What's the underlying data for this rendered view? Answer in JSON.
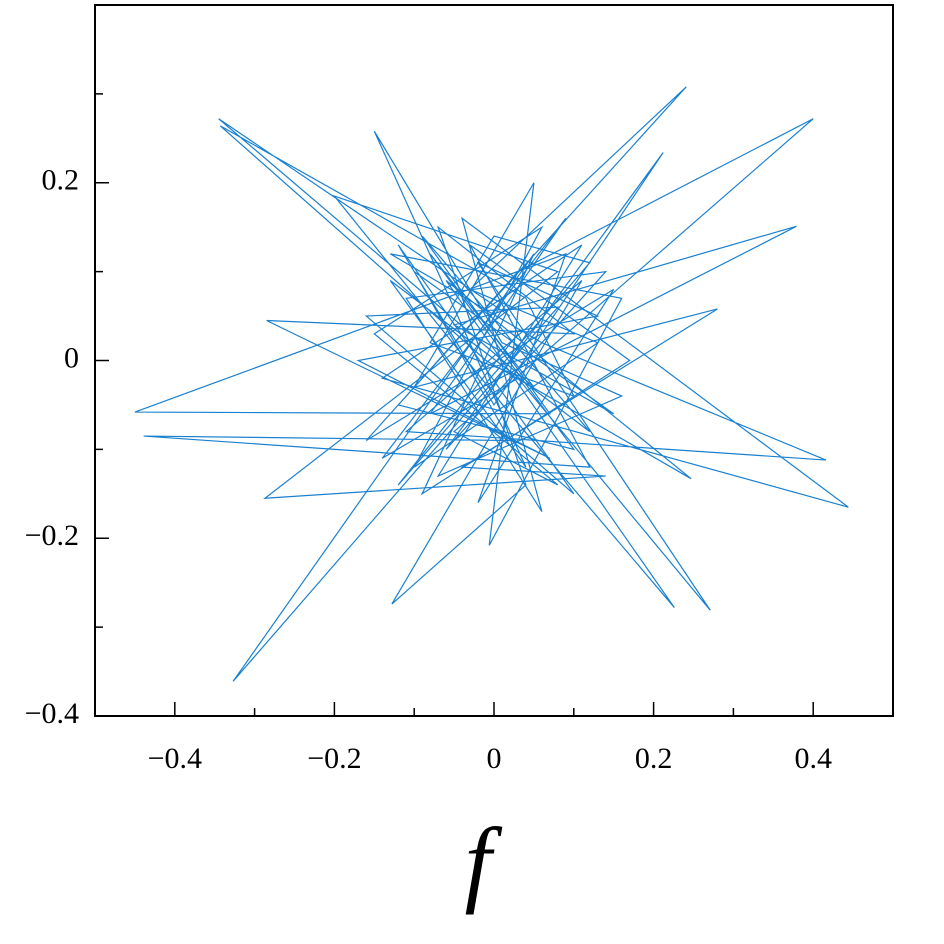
{
  "chart_data": {
    "type": "line",
    "xlabel": "f",
    "xlim": [
      -0.5,
      0.5
    ],
    "ylim": [
      -0.4,
      0.4
    ],
    "xticks": [
      {
        "value": -0.4,
        "label": "−0.4"
      },
      {
        "value": -0.2,
        "label": "−0.2"
      },
      0,
      0.2,
      0.4
    ],
    "yticks": [
      {
        "value": -0.4,
        "label": "−0.4"
      },
      {
        "value": -0.2,
        "label": "−0.2"
      },
      0,
      0.2
    ],
    "xminorticks": [
      -0.3,
      -0.1,
      0.1,
      0.3
    ],
    "yminorticks": [
      -0.3,
      -0.1,
      0.1,
      0.3
    ],
    "x": [
      0.02,
      -0.345,
      0.05,
      -0.08,
      0.1,
      -0.12,
      0.241,
      -0.03,
      0.13,
      -0.1,
      0.06,
      -0.15,
      0.08,
      -0.05,
      0.4,
      0.03,
      -0.16,
      0.15,
      -0.02,
      0.09,
      -0.45,
      0.07,
      -0.09,
      0.12,
      -0.13,
      0.04,
      -0.15,
      0.01,
      0.16,
      -0.07,
      0.11,
      -0.14,
      0.444,
      -0.04,
      0.06,
      -0.11,
      0.14,
      -0.06,
      0.212,
      0.0,
      -0.12,
      0.1,
      -0.16,
      0.08,
      -0.327,
      0.05,
      -0.09,
      0.17,
      -0.03,
      0.12,
      -0.439,
      0.02,
      -0.1,
      0.15,
      -0.05,
      0.379,
      -0.08,
      0.09,
      -0.14,
      0.03,
      0.271,
      -0.02,
      0.13,
      -0.17,
      0.07,
      -0.285,
      0.1,
      -0.07,
      0.04,
      -0.128,
      0.11,
      -0.11,
      0.416,
      0.06,
      -0.13,
      0.16,
      -0.006,
      0.05,
      -0.1,
      0.28,
      -0.04,
      0.14,
      -0.287,
      0.08,
      -0.2,
      0.02,
      0.226,
      -0.06,
      0.247,
      -0.01,
      -0.343,
      0.04,
      0.1,
      -0.08,
      0.0,
      0.12,
      -0.12,
      0.03
    ],
    "series": [
      {
        "color": "#1a80d0",
        "values": [
          0.05,
          0.272,
          -0.03,
          0.12,
          -0.1,
          -0.05,
          0.308,
          0.08,
          0.02,
          -0.12,
          0.15,
          0.03,
          -0.14,
          -0.08,
          0.272,
          0.1,
          -0.09,
          0.08,
          -0.16,
          0.12,
          -0.058,
          -0.06,
          0.14,
          -0.08,
          0.09,
          -0.12,
          0.258,
          0.02,
          -0.04,
          -0.13,
          0.13,
          -0.02,
          -0.165,
          0.16,
          -0.17,
          0.07,
          0.1,
          -0.1,
          0.234,
          -0.05,
          0.13,
          -0.15,
          0.05,
          0.06,
          -0.361,
          0.12,
          -0.15,
          0.0,
          0.13,
          -0.12,
          -0.085,
          -0.09,
          0.1,
          -0.06,
          0.04,
          0.151,
          -0.06,
          0.16,
          -0.11,
          -0.02,
          -0.281,
          0.11,
          0.05,
          0.0,
          -0.11,
          0.045,
          0.03,
          0.15,
          -0.14,
          -0.274,
          0.09,
          -0.08,
          -0.112,
          0.02,
          0.12,
          0.07,
          -0.208,
          0.2,
          -0.03,
          0.058,
          -0.12,
          -0.13,
          -0.155,
          0.1,
          0.185,
          -0.06,
          -0.278,
          0.09,
          -0.133,
          0.0,
          0.264,
          0.07,
          -0.04,
          0.02,
          0.14,
          0.11,
          -0.14,
          0.03
        ]
      }
    ]
  }
}
